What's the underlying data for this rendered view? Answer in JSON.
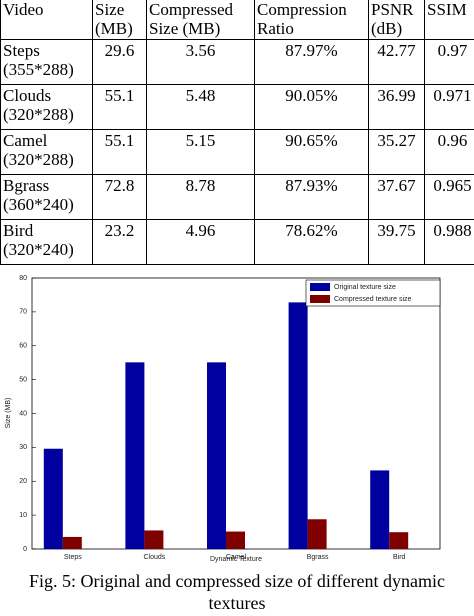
{
  "table": {
    "header": [
      "Video",
      "Size (MB)",
      "Compressed Size (MB)",
      "Compression Ratio",
      "PSNR (dB)",
      "SSIM"
    ],
    "rows": [
      [
        "Steps (355*288)",
        "29.6",
        "3.56",
        "87.97%",
        "42.77",
        "0.97"
      ],
      [
        "Clouds (320*288)",
        "55.1",
        "5.48",
        "90.05%",
        "36.99",
        "0.971"
      ],
      [
        "Camel (320*288)",
        "55.1",
        "5.15",
        "90.65%",
        "35.27",
        "0.96"
      ],
      [
        "Bgrass (360*240)",
        "72.8",
        "8.78",
        "87.93%",
        "37.67",
        "0.965"
      ],
      [
        "Bird (320*240)",
        "23.2",
        "4.96",
        "78.62%",
        "39.75",
        "0.988"
      ]
    ]
  },
  "chart_data": {
    "type": "bar",
    "xlabel": "Dynamic Texture",
    "ylabel": "Size (MB)",
    "categories": [
      "Steps",
      "Clouds",
      "Camel",
      "Bgrass",
      "Bird"
    ],
    "series": [
      {
        "name": "Original texture size",
        "color": "#0000a0",
        "values": [
          29.6,
          55.1,
          55.1,
          72.8,
          23.2
        ]
      },
      {
        "name": "Compressed texture size",
        "color": "#800000",
        "values": [
          3.56,
          5.48,
          5.15,
          8.78,
          4.96
        ]
      }
    ],
    "ylim": [
      0,
      80
    ],
    "yticks": [
      0,
      10,
      20,
      30,
      40,
      50,
      60,
      70,
      80
    ],
    "legend": "top-right"
  },
  "caption": "Fig. 5: Original and compressed size of different dynamic textures"
}
